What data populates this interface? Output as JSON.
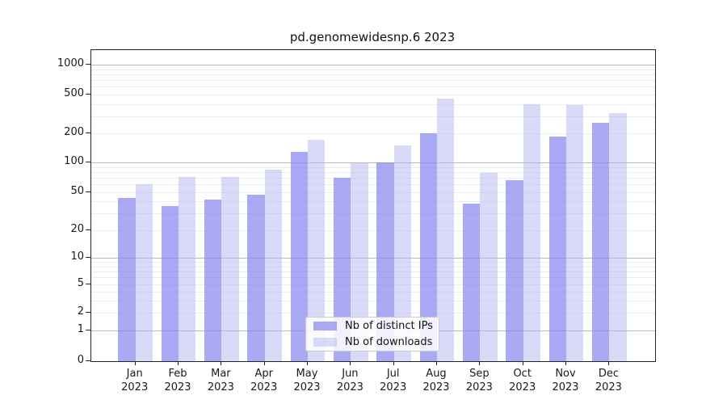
{
  "chart_data": {
    "type": "bar",
    "title": "pd.genomewidesnp.6 2023",
    "categories": [
      {
        "month": "Jan",
        "year": "2023"
      },
      {
        "month": "Feb",
        "year": "2023"
      },
      {
        "month": "Mar",
        "year": "2023"
      },
      {
        "month": "Apr",
        "year": "2023"
      },
      {
        "month": "May",
        "year": "2023"
      },
      {
        "month": "Jun",
        "year": "2023"
      },
      {
        "month": "Jul",
        "year": "2023"
      },
      {
        "month": "Aug",
        "year": "2023"
      },
      {
        "month": "Sep",
        "year": "2023"
      },
      {
        "month": "Oct",
        "year": "2023"
      },
      {
        "month": "Nov",
        "year": "2023"
      },
      {
        "month": "Dec",
        "year": "2023"
      }
    ],
    "series": [
      {
        "name": "Nb of distinct IPs",
        "values": [
          44,
          36,
          42,
          47,
          128,
          70,
          100,
          202,
          38,
          66,
          186,
          257
        ],
        "fill": "rgba(134,134,240,0.70)",
        "approx_hex_on_white": "#aaaaf4"
      },
      {
        "name": "Nb of downloads",
        "values": [
          60,
          71,
          72,
          85,
          170,
          99,
          150,
          458,
          78,
          395,
          388,
          322
        ],
        "fill": "rgba(179,179,241,0.50)",
        "approx_hex_on_white": "#d9d9f8"
      }
    ],
    "yscale": "symlog",
    "yticks": [
      0,
      1,
      2,
      5,
      10,
      20,
      50,
      100,
      200,
      500,
      1000
    ],
    "ylim": [
      0,
      1300
    ],
    "grid": true,
    "grid_major_color": "#b9b9b9",
    "grid_minor_color": "#ececec",
    "legend_position": "lower center"
  }
}
